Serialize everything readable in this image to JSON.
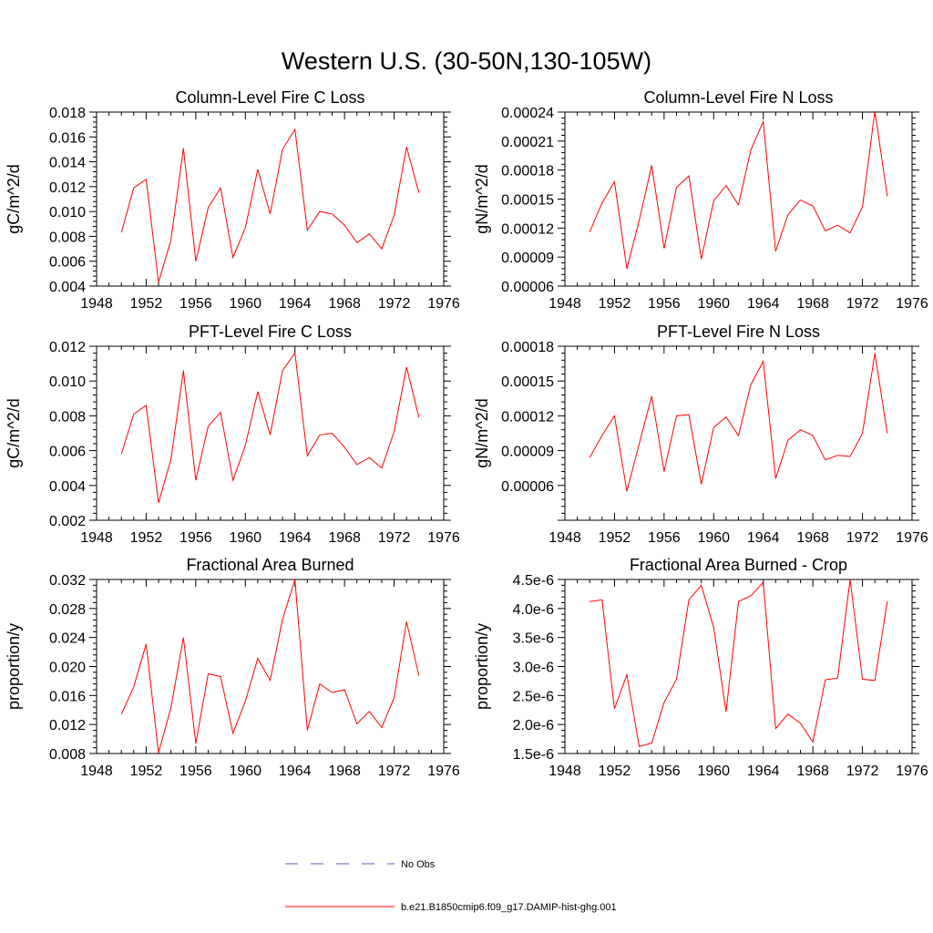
{
  "figure": {
    "title": "Western U.S. (30-50N,130-105W)"
  },
  "legend": {
    "items": [
      {
        "label": "No Obs",
        "color": "#5a5ab4",
        "style": "dashed"
      },
      {
        "label": "b.e21.B1850cmip6.f09_g17.DAMIP-hist-ghg.001",
        "color": "#ff0000",
        "style": "solid"
      }
    ]
  },
  "chart_data": [
    {
      "type": "line",
      "title": "Column-Level Fire C Loss",
      "ylabel": "gC/m^2/d",
      "xlim": [
        1948,
        1976
      ],
      "xticks": [
        1948,
        1952,
        1956,
        1960,
        1964,
        1968,
        1972,
        1976
      ],
      "ylim": [
        0.004,
        0.018
      ],
      "yticks": [
        "0.004",
        "0.006",
        "0.008",
        "0.010",
        "0.012",
        "0.014",
        "0.016",
        "0.018"
      ],
      "x": [
        1950,
        1951,
        1952,
        1953,
        1954,
        1955,
        1956,
        1957,
        1958,
        1959,
        1960,
        1961,
        1962,
        1963,
        1964,
        1965,
        1966,
        1967,
        1968,
        1969,
        1970,
        1971,
        1972,
        1973,
        1974
      ],
      "series": [
        {
          "color": "#ff0000",
          "values": [
            0.0083,
            0.0119,
            0.0126,
            0.0043,
            0.0077,
            0.0151,
            0.006,
            0.0103,
            0.0119,
            0.0063,
            0.0087,
            0.0134,
            0.0098,
            0.015,
            0.0166,
            0.0085,
            0.01,
            0.0098,
            0.0089,
            0.0075,
            0.0082,
            0.007,
            0.0097,
            0.0152,
            0.0115
          ]
        }
      ]
    },
    {
      "type": "line",
      "title": "Column-Level Fire N Loss",
      "ylabel": "gN/m^2/d",
      "xlim": [
        1948,
        1976
      ],
      "xticks": [
        1948,
        1952,
        1956,
        1960,
        1964,
        1968,
        1972,
        1976
      ],
      "ylim": [
        6e-05,
        0.00024
      ],
      "yticks": [
        "0.00006",
        "0.00009",
        "0.00012",
        "0.00015",
        "0.00018",
        "0.00021",
        "0.00024"
      ],
      "x": [
        1950,
        1951,
        1952,
        1953,
        1954,
        1955,
        1956,
        1957,
        1958,
        1959,
        1960,
        1961,
        1962,
        1963,
        1964,
        1965,
        1966,
        1967,
        1968,
        1969,
        1970,
        1971,
        1972,
        1973,
        1974
      ],
      "series": [
        {
          "color": "#ff0000",
          "values": [
            0.000116,
            0.000146,
            0.000168,
            7.8e-05,
            0.000128,
            0.000185,
            9.9e-05,
            0.000162,
            0.000174,
            8.8e-05,
            0.000148,
            0.000164,
            0.000144,
            0.000201,
            0.00023,
            9.6e-05,
            0.000134,
            0.000149,
            0.000143,
            0.000117,
            0.000123,
            0.000115,
            0.000142,
            0.000241,
            0.000153
          ]
        }
      ]
    },
    {
      "type": "line",
      "title": "PFT-Level Fire C Loss",
      "ylabel": "gC/m^2/d",
      "xlim": [
        1948,
        1976
      ],
      "xticks": [
        1948,
        1952,
        1956,
        1960,
        1964,
        1968,
        1972,
        1976
      ],
      "ylim": [
        0.002,
        0.012
      ],
      "yticks": [
        "0.002",
        "0.004",
        "0.006",
        "0.008",
        "0.010",
        "0.012"
      ],
      "x": [
        1950,
        1951,
        1952,
        1953,
        1954,
        1955,
        1956,
        1957,
        1958,
        1959,
        1960,
        1961,
        1962,
        1963,
        1964,
        1965,
        1966,
        1967,
        1968,
        1969,
        1970,
        1971,
        1972,
        1973,
        1974
      ],
      "series": [
        {
          "color": "#ff0000",
          "values": [
            0.0058,
            0.0081,
            0.0086,
            0.003,
            0.0055,
            0.0106,
            0.0043,
            0.0074,
            0.0082,
            0.0043,
            0.0063,
            0.0094,
            0.0069,
            0.0106,
            0.0116,
            0.0057,
            0.0069,
            0.007,
            0.0062,
            0.0052,
            0.0056,
            0.005,
            0.0071,
            0.0108,
            0.0079
          ]
        }
      ]
    },
    {
      "type": "line",
      "title": "PFT-Level Fire N Loss",
      "ylabel": "gN/m^2/d",
      "xlim": [
        1948,
        1976
      ],
      "xticks": [
        1948,
        1952,
        1956,
        1960,
        1964,
        1968,
        1972,
        1976
      ],
      "ylim": [
        3e-05,
        0.00018
      ],
      "yticks": [
        "0.00006",
        "0.00009",
        "0.00012",
        "0.00015",
        "0.00018"
      ],
      "x": [
        1950,
        1951,
        1952,
        1953,
        1954,
        1955,
        1956,
        1957,
        1958,
        1959,
        1960,
        1961,
        1962,
        1963,
        1964,
        1965,
        1966,
        1967,
        1968,
        1969,
        1970,
        1971,
        1972,
        1973,
        1974
      ],
      "series": [
        {
          "color": "#ff0000",
          "values": [
            8.4e-05,
            0.000103,
            0.00012,
            5.5e-05,
            9.6e-05,
            0.000137,
            7.2e-05,
            0.00012,
            0.000121,
            6.1e-05,
            0.00011,
            0.000119,
            0.000103,
            0.000147,
            0.000167,
            6.6e-05,
            9.9e-05,
            0.000108,
            0.000103,
            8.2e-05,
            8.6e-05,
            8.5e-05,
            0.000105,
            0.000174,
            0.000105
          ]
        }
      ]
    },
    {
      "type": "line",
      "title": "Fractional Area Burned",
      "ylabel": "proportion/y",
      "xlim": [
        1948,
        1976
      ],
      "xticks": [
        1948,
        1952,
        1956,
        1960,
        1964,
        1968,
        1972,
        1976
      ],
      "ylim": [
        0.008,
        0.032
      ],
      "yticks": [
        "0.008",
        "0.012",
        "0.016",
        "0.020",
        "0.024",
        "0.028",
        "0.032"
      ],
      "x": [
        1950,
        1951,
        1952,
        1953,
        1954,
        1955,
        1956,
        1957,
        1958,
        1959,
        1960,
        1961,
        1962,
        1963,
        1964,
        1965,
        1966,
        1967,
        1968,
        1969,
        1970,
        1971,
        1972,
        1973,
        1974
      ],
      "series": [
        {
          "color": "#ff0000",
          "values": [
            0.0134,
            0.0172,
            0.0231,
            0.0081,
            0.0143,
            0.024,
            0.0094,
            0.019,
            0.0186,
            0.0108,
            0.0152,
            0.0211,
            0.0181,
            0.0265,
            0.032,
            0.0112,
            0.0176,
            0.0164,
            0.0168,
            0.0121,
            0.0138,
            0.0116,
            0.0157,
            0.0262,
            0.0187
          ]
        }
      ]
    },
    {
      "type": "line",
      "title": "Fractional Area Burned - Crop",
      "ylabel": "proportion/y",
      "xlim": [
        1948,
        1976
      ],
      "xticks": [
        1948,
        1952,
        1956,
        1960,
        1964,
        1968,
        1972,
        1976
      ],
      "ylim": [
        1.5e-06,
        4.5e-06
      ],
      "yticks": [
        "1.5e-6",
        "2.0e-6",
        "2.5e-6",
        "3.0e-6",
        "3.5e-6",
        "4.0e-6",
        "4.5e-6"
      ],
      "x": [
        1950,
        1951,
        1952,
        1953,
        1954,
        1955,
        1956,
        1957,
        1958,
        1959,
        1960,
        1961,
        1962,
        1963,
        1964,
        1965,
        1966,
        1967,
        1968,
        1969,
        1970,
        1971,
        1972,
        1973,
        1974
      ],
      "series": [
        {
          "color": "#ff0000",
          "values": [
            4.12e-06,
            4.15e-06,
            2.27e-06,
            2.86e-06,
            1.62e-06,
            1.68e-06,
            2.38e-06,
            2.78e-06,
            4.15e-06,
            4.4e-06,
            3.67e-06,
            2.22e-06,
            4.12e-06,
            4.22e-06,
            4.45e-06,
            1.93e-06,
            2.18e-06,
            2.02e-06,
            1.7e-06,
            2.77e-06,
            2.8e-06,
            4.5e-06,
            2.78e-06,
            2.76e-06,
            4.12e-06
          ]
        }
      ]
    }
  ]
}
